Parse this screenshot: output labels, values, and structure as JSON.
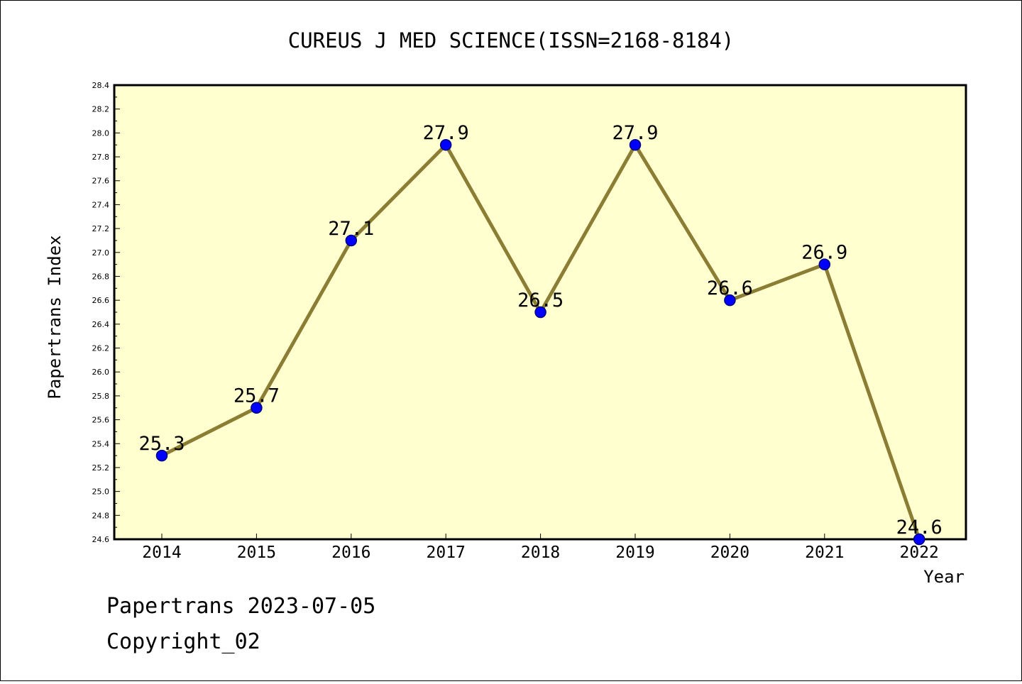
{
  "chart_data": {
    "type": "line",
    "title": "CUREUS J MED SCIENCE(ISSN=2168-8184)",
    "xlabel": "Year",
    "ylabel": "Papertrans Index",
    "x": [
      "2014",
      "2015",
      "2016",
      "2017",
      "2018",
      "2019",
      "2020",
      "2021",
      "2022"
    ],
    "values": [
      25.3,
      25.7,
      27.1,
      27.9,
      26.5,
      27.9,
      26.6,
      26.9,
      24.6
    ],
    "data_labels": [
      "25.3",
      "25.7",
      "27.1",
      "27.9",
      "26.5",
      "27.9",
      "26.6",
      "26.9",
      "24.6"
    ],
    "ylim": [
      24.6,
      28.4
    ],
    "y_ticks": [
      "24.6",
      "24.8",
      "25.0",
      "25.2",
      "25.4",
      "25.6",
      "25.8",
      "26.0",
      "26.2",
      "26.4",
      "26.6",
      "26.8",
      "27.0",
      "27.2",
      "27.4",
      "27.6",
      "27.8",
      "28.0",
      "28.2",
      "28.4"
    ],
    "grid": false,
    "colors": {
      "plot_background": "#ffffd0",
      "line": "#8b7d33",
      "marker": "#0000ff",
      "marker_edge": "#000080"
    }
  },
  "footer": {
    "line1": "Papertrans 2023-07-05",
    "line2": "Copyright_02"
  }
}
